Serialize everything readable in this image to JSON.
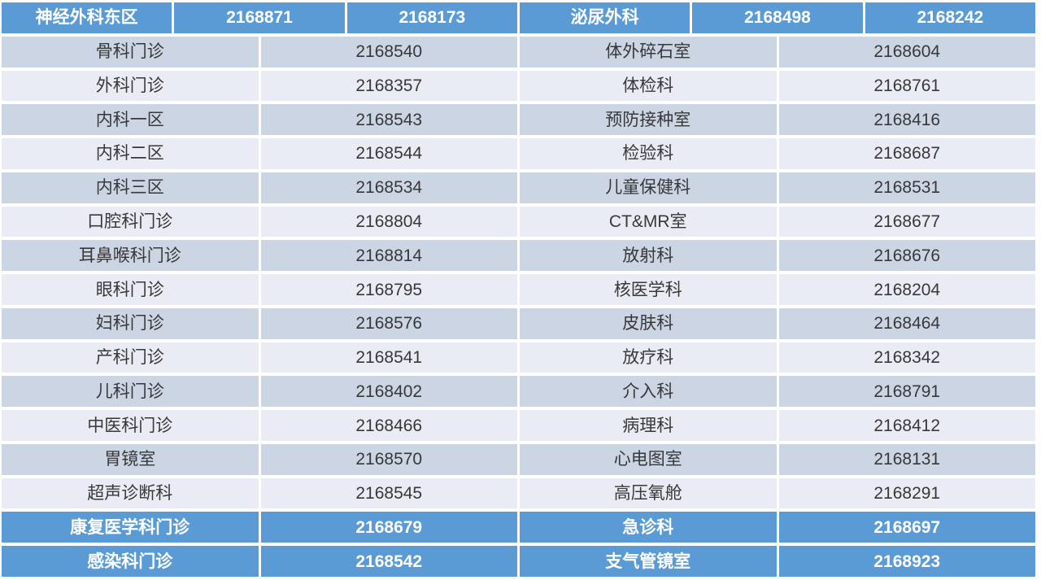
{
  "colors": {
    "header_blue": "#5B9BD5",
    "band_dark": "#CCD5E4",
    "band_light": "#E9ECF4",
    "body_text": "#383838",
    "header_text": "#FFFFFF"
  },
  "table": {
    "header_cells": [
      "神经外科东区",
      "2168871",
      "2168173",
      "泌尿外科",
      "2168498",
      "2168242"
    ],
    "rows": [
      {
        "style": "dark",
        "cells": [
          "骨科门诊",
          "2168540",
          "体外碎石室",
          "2168604"
        ]
      },
      {
        "style": "light",
        "cells": [
          "外科门诊",
          "2168357",
          "体检科",
          "2168761"
        ]
      },
      {
        "style": "dark",
        "cells": [
          "内科一区",
          "2168543",
          "预防接种室",
          "2168416"
        ]
      },
      {
        "style": "light",
        "cells": [
          "内科二区",
          "2168544",
          "检验科",
          "2168687"
        ]
      },
      {
        "style": "dark",
        "cells": [
          "内科三区",
          "2168534",
          "儿童保健科",
          "2168531"
        ]
      },
      {
        "style": "light",
        "cells": [
          "口腔科门诊",
          "2168804",
          "CT&MR室",
          "2168677"
        ]
      },
      {
        "style": "dark",
        "cells": [
          "耳鼻喉科门诊",
          "2168814",
          "放射科",
          "2168676"
        ]
      },
      {
        "style": "light",
        "cells": [
          "眼科门诊",
          "2168795",
          "核医学科",
          "2168204"
        ]
      },
      {
        "style": "dark",
        "cells": [
          "妇科门诊",
          "2168576",
          "皮肤科",
          "2168464"
        ]
      },
      {
        "style": "light",
        "cells": [
          "产科门诊",
          "2168541",
          "放疗科",
          "2168342"
        ]
      },
      {
        "style": "dark",
        "cells": [
          "儿科门诊",
          "2168402",
          "介入科",
          "2168791"
        ]
      },
      {
        "style": "light",
        "cells": [
          "中医科门诊",
          "2168466",
          "病理科",
          "2168412"
        ]
      },
      {
        "style": "dark",
        "cells": [
          "胃镜室",
          "2168570",
          "心电图室",
          "2168131"
        ]
      },
      {
        "style": "light",
        "cells": [
          "超声诊断科",
          "2168545",
          "高压氧舱",
          "2168291"
        ]
      },
      {
        "style": "blue",
        "cells": [
          "康复医学科门诊",
          "2168679",
          "急诊科",
          "2168697"
        ]
      },
      {
        "style": "blue",
        "cells": [
          "感染科门诊",
          "2168542",
          "支气管镜室",
          "2168923"
        ]
      }
    ]
  }
}
